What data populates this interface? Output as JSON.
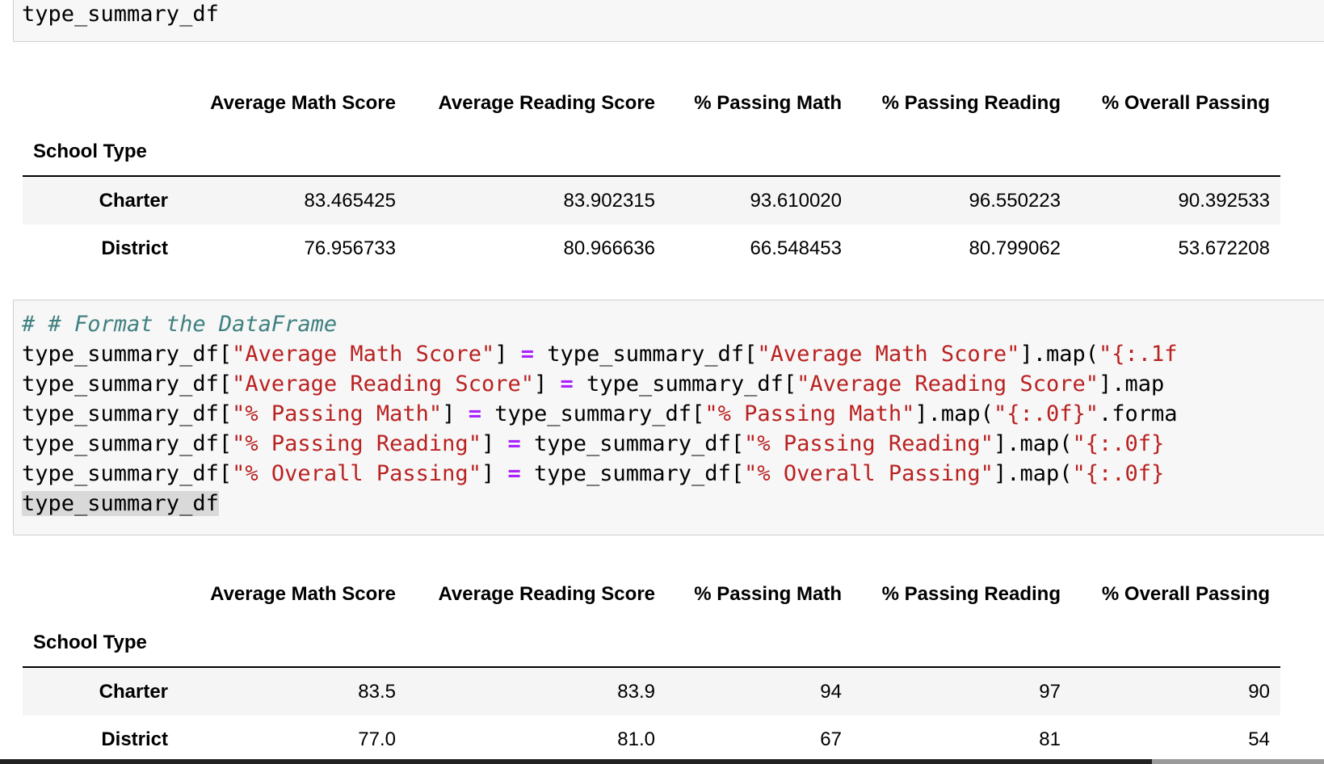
{
  "cell_top": {
    "code": "type_summary_df"
  },
  "cell_format": {
    "comment": "# # Format the DataFrame",
    "line1": {
      "target": "type_summary_df[",
      "key": "\"Average Math Score\"",
      "close": "] ",
      "eq": "=",
      "source": " type_summary_df[",
      "key2": "\"Average Math Score\"",
      "call": "].map(",
      "fmt": "\"{:.1f"
    },
    "line2": {
      "target": "type_summary_df[",
      "key": "\"Average Reading Score\"",
      "close": "] ",
      "eq": "=",
      "source": " type_summary_df[",
      "key2": "\"Average Reading Score\"",
      "call": "].map"
    },
    "line3": {
      "target": "type_summary_df[",
      "key": "\"% Passing Math\"",
      "close": "] ",
      "eq": "=",
      "source": " type_summary_df[",
      "key2": "\"% Passing Math\"",
      "call": "].map(",
      "fmt": "\"{:.0f}\"",
      "tail": ".forma"
    },
    "line4": {
      "target": "type_summary_df[",
      "key": "\"% Passing Reading\"",
      "close": "] ",
      "eq": "=",
      "source": " type_summary_df[",
      "key2": "\"% Passing Reading\"",
      "call": "].map(",
      "fmt": "\"{:.0f}"
    },
    "line5": {
      "target": "type_summary_df[",
      "key": "\"% Overall Passing\"",
      "close": "] ",
      "eq": "=",
      "source": " type_summary_df[",
      "key2": "\"% Overall Passing\"",
      "call": "].map(",
      "fmt": "\"{:.0f}"
    },
    "last_line": "type_summary_df"
  },
  "output_raw": {
    "index_name": "School Type",
    "columns": [
      "Average Math Score",
      "Average Reading Score",
      "% Passing Math",
      "% Passing Reading",
      "% Overall Passing"
    ],
    "rows": [
      {
        "index": "Charter",
        "values": [
          "83.465425",
          "83.902315",
          "93.610020",
          "96.550223",
          "90.392533"
        ]
      },
      {
        "index": "District",
        "values": [
          "76.956733",
          "80.966636",
          "66.548453",
          "80.799062",
          "53.672208"
        ]
      }
    ]
  },
  "output_formatted": {
    "index_name": "School Type",
    "columns": [
      "Average Math Score",
      "Average Reading Score",
      "% Passing Math",
      "% Passing Reading",
      "% Overall Passing"
    ],
    "rows": [
      {
        "index": "Charter",
        "values": [
          "83.5",
          "83.9",
          "94",
          "97",
          "90"
        ]
      },
      {
        "index": "District",
        "values": [
          "77.0",
          "81.0",
          "67",
          "81",
          "54"
        ]
      }
    ]
  },
  "colors": {
    "comment": "#408080",
    "string": "#ba2121",
    "operator": "#aa22ff",
    "cell_background": "#f7f7f7",
    "row_stripe": "#f5f5f5"
  }
}
